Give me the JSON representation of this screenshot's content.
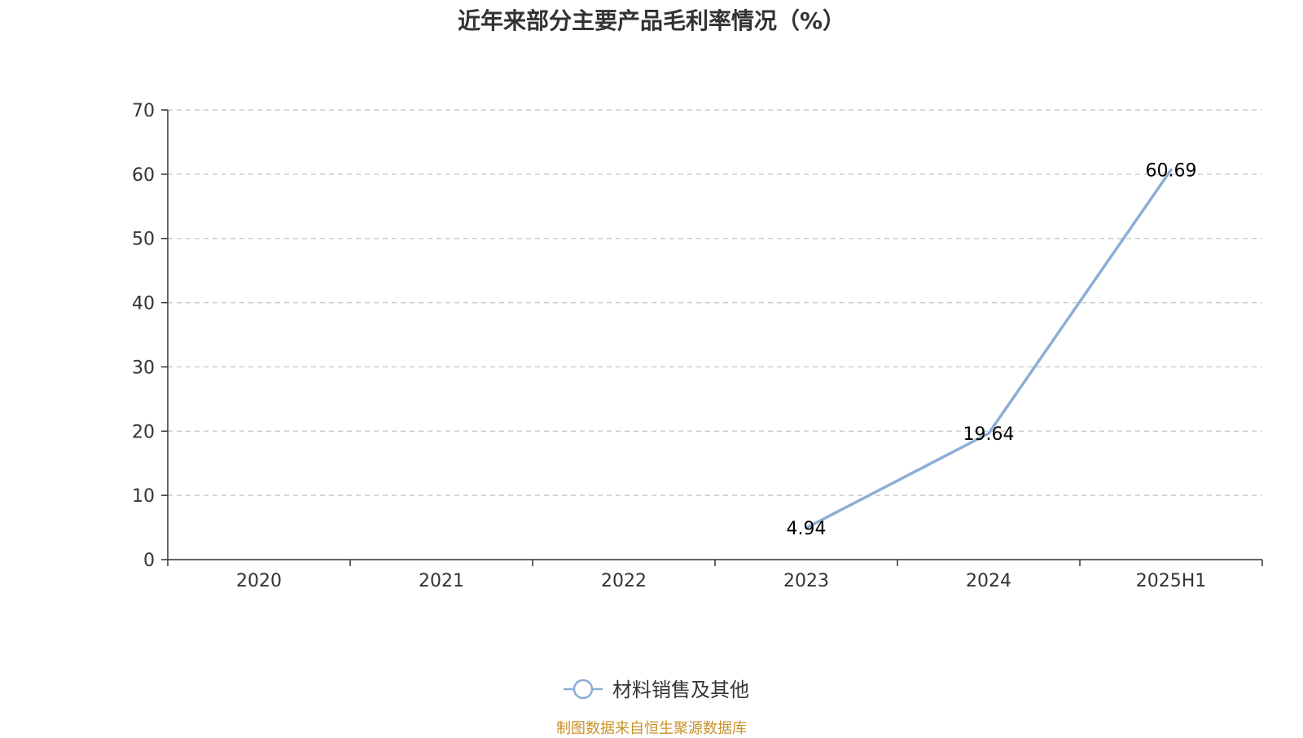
{
  "chart_data": {
    "type": "line",
    "title": "近年来部分主要产品毛利率情况（%）",
    "categories": [
      "2020",
      "2021",
      "2022",
      "2023",
      "2024",
      "2025H1"
    ],
    "series": [
      {
        "name": "材料销售及其他",
        "values": [
          null,
          null,
          null,
          4.94,
          19.64,
          60.69
        ],
        "labels": [
          "",
          "",
          "",
          "4.94",
          "19.64",
          "60.69"
        ],
        "color": "#8eadd6"
      }
    ],
    "ylim": [
      0,
      70
    ],
    "yticks": [
      "0",
      "10",
      "20",
      "30",
      "40",
      "50",
      "60",
      "70"
    ],
    "ytick_values": [
      0,
      10,
      20,
      30,
      40,
      50,
      60,
      70
    ],
    "grid": true,
    "legend": "bottom-center",
    "xlabel": "",
    "ylabel": ""
  },
  "source_note": "制图数据来自恒生聚源数据库",
  "colors": {
    "axis": "#333333",
    "grid": "#cccccc",
    "line": "#8eadd6",
    "source": "#c8922a"
  }
}
